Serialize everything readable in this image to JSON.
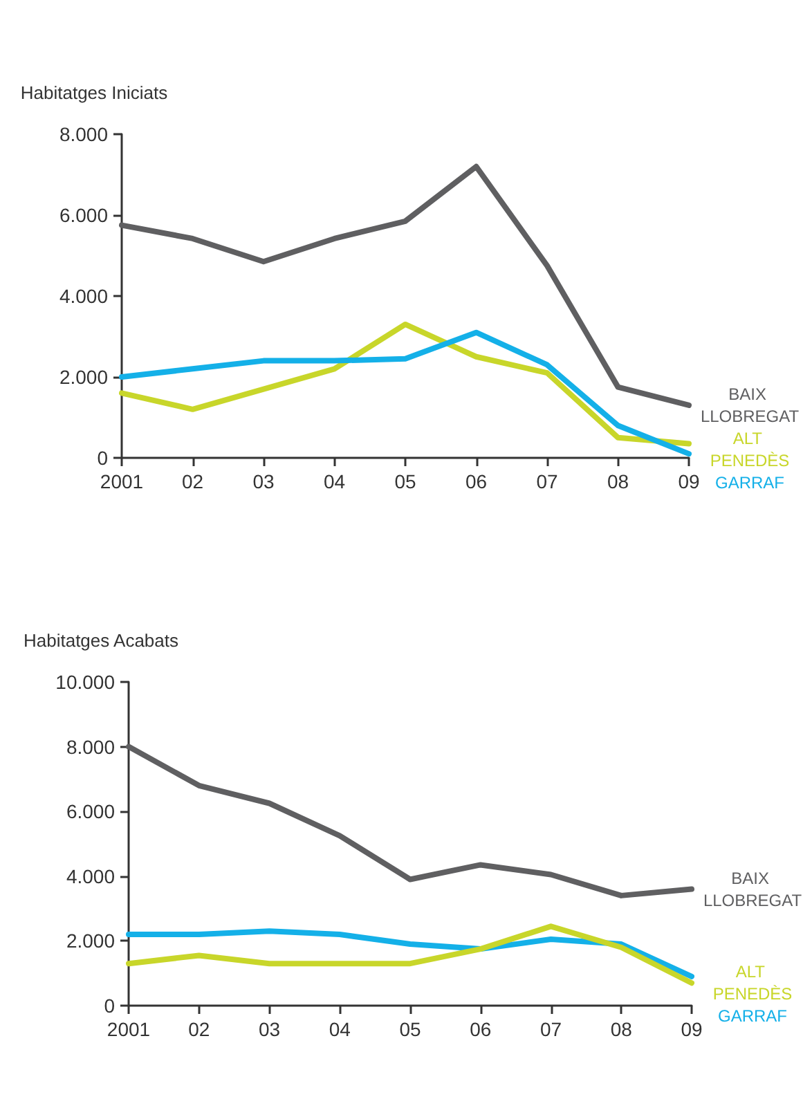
{
  "chart_data": [
    {
      "type": "line",
      "ylabel": "Habitatges Iniciats",
      "categories": [
        "2001",
        "02",
        "03",
        "04",
        "05",
        "06",
        "07",
        "08",
        "09"
      ],
      "series": [
        {
          "name": "BAIX LLOBREGAT",
          "color": "#5f5f61",
          "values": [
            5750,
            5420,
            4850,
            5420,
            5850,
            7200,
            4750,
            1750,
            1300
          ]
        },
        {
          "name": "ALT PENEDÈS",
          "color": "#c8d62a",
          "values": [
            1600,
            1200,
            1700,
            2200,
            3300,
            2500,
            2100,
            500,
            350
          ]
        },
        {
          "name": "GARRAF",
          "color": "#14b0e8",
          "values": [
            2000,
            2200,
            2400,
            2400,
            2450,
            3100,
            2300,
            800,
            100
          ]
        }
      ],
      "ylim": [
        0,
        8000
      ],
      "yticks": [
        0,
        {
          "value": 2000,
          "label": "2.000"
        },
        {
          "value": 4000,
          "label": "4.000"
        },
        {
          "value": 6000,
          "label": "6.000"
        },
        {
          "value": 8000,
          "label": "8.000"
        }
      ],
      "grid": false,
      "legend": false,
      "marker": "none",
      "line_style": "solid"
    },
    {
      "type": "line",
      "ylabel": "Habitatges Acabats",
      "categories": [
        "2001",
        "02",
        "03",
        "04",
        "05",
        "06",
        "07",
        "08",
        "09"
      ],
      "series": [
        {
          "name": "BAIX LLOBREGAT",
          "color": "#5f5f61",
          "values": [
            8000,
            6800,
            6250,
            5250,
            3900,
            4350,
            4050,
            3400,
            3600
          ]
        },
        {
          "name": "GARRAF",
          "color": "#14b0e8",
          "values": [
            2200,
            2200,
            2300,
            2200,
            1900,
            1750,
            2050,
            1900,
            900
          ]
        },
        {
          "name": "ALT PENEDÈS",
          "color": "#c8d62a",
          "values": [
            1300,
            1550,
            1300,
            1300,
            1300,
            1750,
            2450,
            1800,
            700
          ]
        }
      ],
      "ylim": [
        0,
        10000
      ],
      "yticks": [
        0,
        {
          "value": 2000,
          "label": "2.000"
        },
        {
          "value": 4000,
          "label": "4.000"
        },
        {
          "value": 6000,
          "label": "6.000"
        },
        {
          "value": 8000,
          "label": "8.000"
        },
        {
          "value": 10000,
          "label": "10.000"
        }
      ],
      "grid": false,
      "legend": false,
      "marker": "none",
      "line_style": "solid"
    }
  ]
}
